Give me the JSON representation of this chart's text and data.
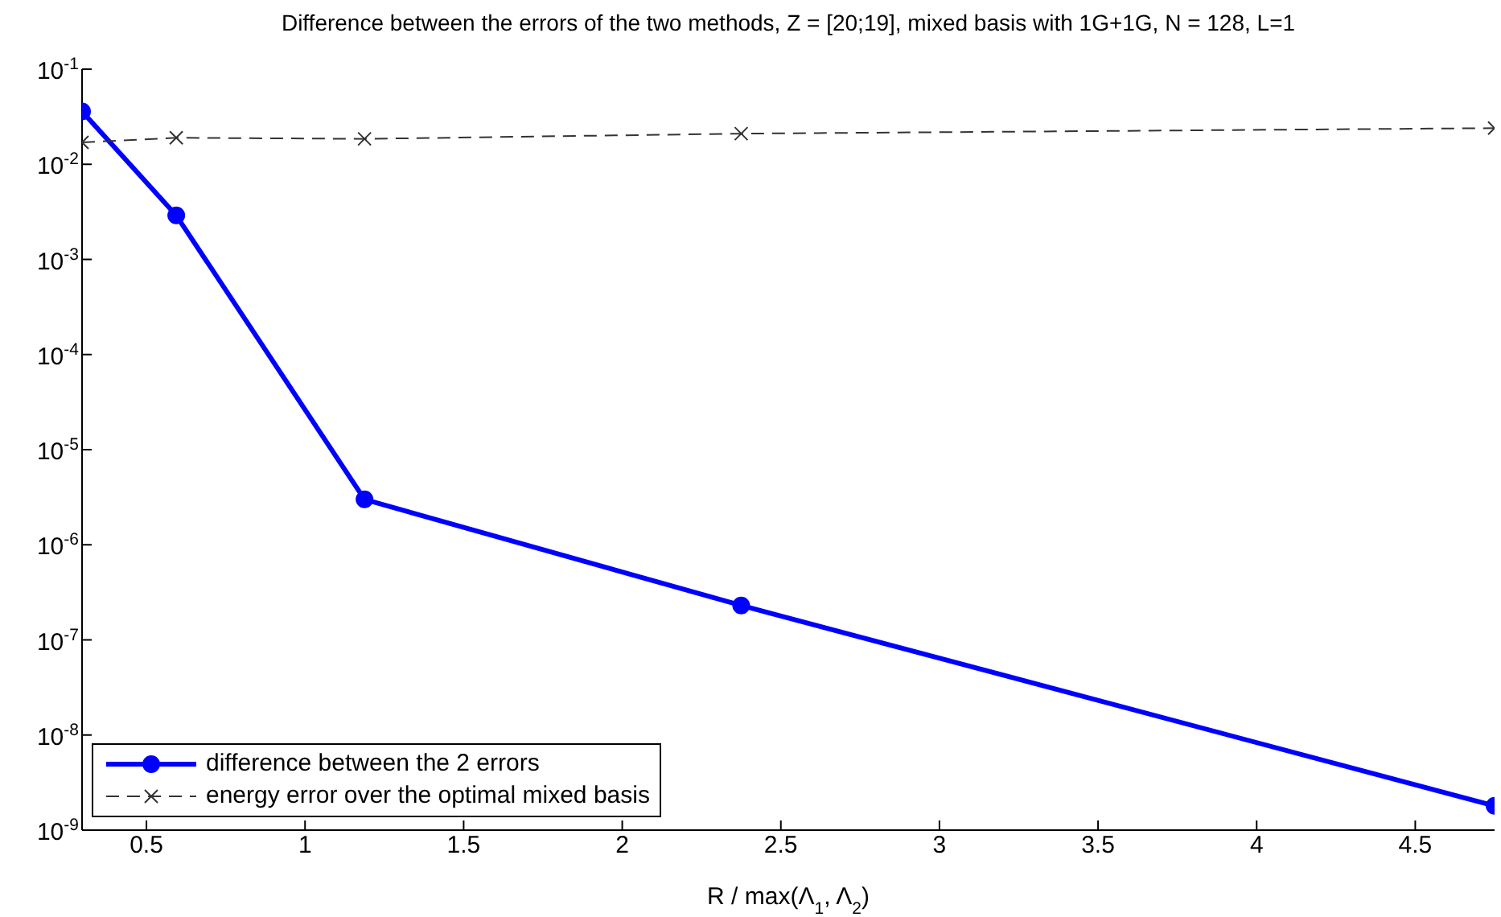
{
  "chart_data": {
    "type": "line",
    "title": "Difference between the errors of the two methods, Z = [20;19], mixed basis with 1G+1G, N = 128, L=1",
    "xlabel": "R / max(Λ$_{1}$, Λ$_{2}$)",
    "x": [
      0.297,
      0.594,
      1.1875,
      2.375,
      4.75
    ],
    "series": [
      {
        "name": "difference between the 2 errors",
        "color": "#0000ff",
        "values": [
          0.036,
          0.0029,
          3e-06,
          2.3e-07,
          1.8e-09
        ],
        "marker": "circle",
        "line_style": "solid"
      },
      {
        "name": "energy error over the optimal mixed basis",
        "color": "#333333",
        "values": [
          0.017,
          0.019,
          0.0185,
          0.021,
          0.024
        ],
        "marker": "cross",
        "line_style": "dashed"
      }
    ],
    "xlim": [
      0.297,
      4.75
    ],
    "xticks": [
      0.5,
      1,
      1.5,
      2,
      2.5,
      3,
      3.5,
      4,
      4.5
    ],
    "ylim": [
      1e-09,
      0.1
    ],
    "yticks": [
      {
        "value": 1e-09,
        "label": "10$^{-9}$"
      },
      {
        "value": 1e-08,
        "label": "10$^{-8}$"
      },
      {
        "value": 1e-07,
        "label": "10$^{-7}$"
      },
      {
        "value": 1e-06,
        "label": "10$^{-6}$"
      },
      {
        "value": 1e-05,
        "label": "10$^{-5}$"
      },
      {
        "value": 0.0001,
        "label": "10$^{-4}$"
      },
      {
        "value": 0.001,
        "label": "10$^{-3}$"
      },
      {
        "value": 0.01,
        "label": "10$^{-2}$"
      },
      {
        "value": 0.1,
        "label": "10$^{-1}$"
      }
    ],
    "log": true,
    "grid": false,
    "legend": "bottom left"
  }
}
